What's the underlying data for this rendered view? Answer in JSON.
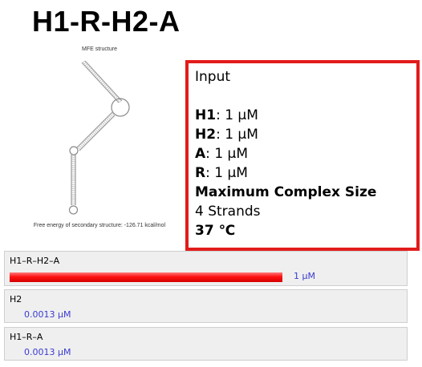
{
  "page": {
    "title": "H1-R-H2-A"
  },
  "mfe": {
    "title": "MFE structure",
    "energy_label": "Free energy of secondary structure: -126.71 kcal/mol"
  },
  "input": {
    "heading": "Input",
    "strands": [
      {
        "name": "H1",
        "sep": ": ",
        "value": "1 μM"
      },
      {
        "name": "H2",
        "sep": ": ",
        "value": "1 μM"
      },
      {
        "name": "A",
        "sep": ": ",
        "value": "1 μM"
      },
      {
        "name": "R",
        "sep": ": ",
        "value": "1 μM"
      }
    ],
    "max_complex_label": "Maximum Complex Size",
    "max_complex_value": "4 Strands",
    "temperature": "37 ℃"
  },
  "results": [
    {
      "name": "H1–R–H2–A",
      "concentration": "1 μM",
      "fraction": 1.0,
      "bar_color": "#ff0000"
    },
    {
      "name": "H2",
      "concentration": "0.0013 μM",
      "fraction": 0.0013
    },
    {
      "name": "H1–R–A",
      "concentration": "0.0013 μM",
      "fraction": 0.0013
    }
  ]
}
